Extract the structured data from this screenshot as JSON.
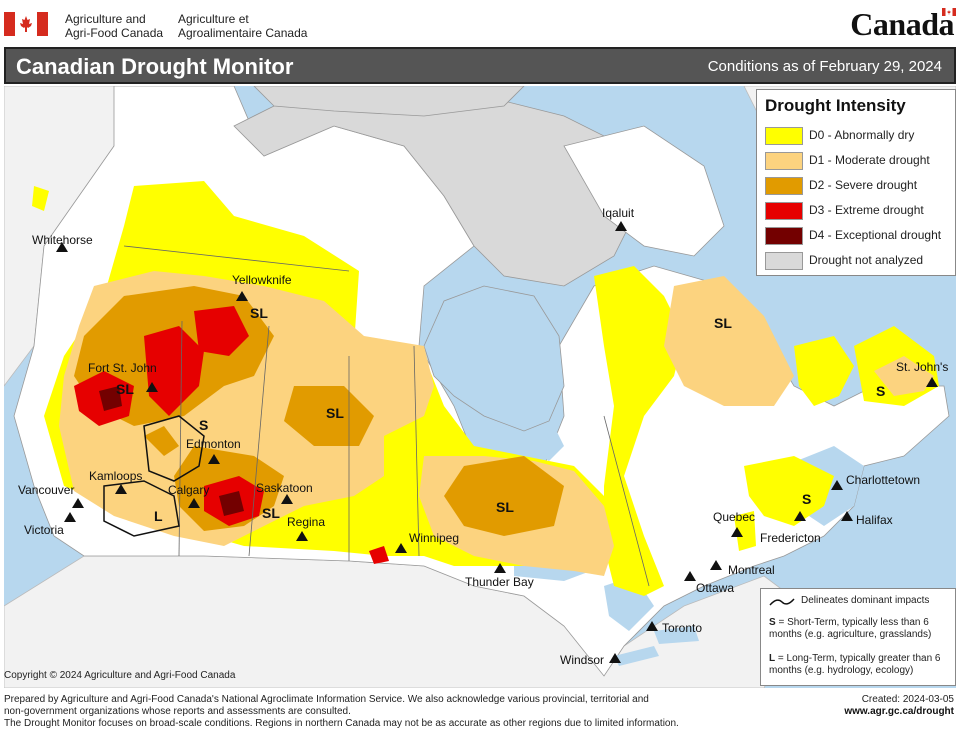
{
  "header": {
    "dept_en_line1": "Agriculture and",
    "dept_en_line2": "Agri-Food Canada",
    "dept_fr_line1": "Agriculture et",
    "dept_fr_line2": "Agroalimentaire Canada",
    "wordmark": "Canada"
  },
  "title_bar": {
    "title": "Canadian Drought Monitor",
    "conditions": "Conditions as of February 29, 2024"
  },
  "legend": {
    "title": "Drought Intensity",
    "items": [
      {
        "code": "D0",
        "label": "D0 - Abnormally dry",
        "color": "#ffff00"
      },
      {
        "code": "D1",
        "label": "D1 - Moderate drought",
        "color": "#fcd37f"
      },
      {
        "code": "D2",
        "label": "D2 - Severe drought",
        "color": "#e19b00"
      },
      {
        "code": "D3",
        "label": "D3 - Extreme drought",
        "color": "#e60000"
      },
      {
        "code": "D4",
        "label": "D4 - Exceptional drought",
        "color": "#730000"
      },
      {
        "code": "NA",
        "label": "Drought not analyzed",
        "color": "#d9d9d9"
      }
    ]
  },
  "impact_legend": {
    "delineates": "Delineates dominant impacts",
    "s_key": "S",
    "s_text": " = Short-Term, typically less than 6 months (e.g. agriculture, grasslands)",
    "l_key": "L",
    "l_text": " = Long-Term, typically greater  than 6 months (e.g. hydrology, ecology)"
  },
  "cities": {
    "whitehorse": "Whitehorse",
    "yellowknife": "Yellowknife",
    "iqaluit": "Iqaluit",
    "fort_st_john": "Fort St. John",
    "edmonton": "Edmonton",
    "kamloops": "Kamloops",
    "vancouver": "Vancouver",
    "victoria": "Victoria",
    "calgary": "Calgary",
    "saskatoon": "Saskatoon",
    "regina": "Regina",
    "winnipeg": "Winnipeg",
    "thunder_bay": "Thunder Bay",
    "quebec": "Quebec",
    "montreal": "Montreal",
    "ottawa": "Ottawa",
    "toronto": "Toronto",
    "windsor": "Windsor",
    "fredericton": "Fredericton",
    "halifax": "Halifax",
    "charlottetown": "Charlottetown",
    "st_johns": "St. John's"
  },
  "impact_labels": {
    "sl_yk": "SL",
    "sl_fsj": "SL",
    "s_ab": "S",
    "sl_sk_north": "SL",
    "sl_sk_south": "SL",
    "l_bc": "L",
    "sl_on": "SL",
    "sl_qc": "SL",
    "s_nl": "S",
    "s_mar": "S"
  },
  "copyright": "Copyright © 2024 Agriculture and Agri-Food Canada",
  "footer": {
    "line1": "Prepared by Agriculture and Agri-Food Canada's National Agroclimate Information Service.  We also acknowledge various provincial, territorial and",
    "line2": "non-government organizations whose reports and assessments are consulted.",
    "line3": "The Drought Monitor focuses on broad-scale conditions.  Regions in northern Canada may not be as accurate as other regions due to limited information.",
    "created": "Created:  2024-03-05",
    "url": "www.agr.gc.ca/drought"
  },
  "colors": {
    "water": "#b7d7ee",
    "land_outside": "#f2f2f2",
    "title_bar": "#555555",
    "flag_red": "#d52b1e"
  }
}
